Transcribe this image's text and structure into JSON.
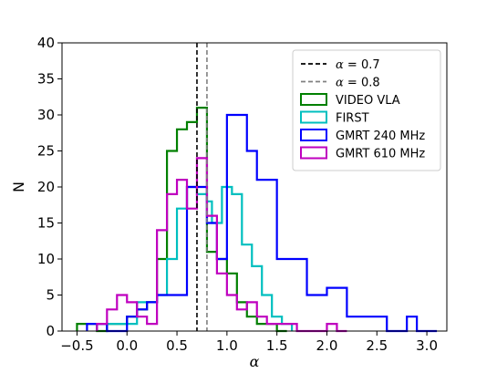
{
  "chart_data": {
    "type": "histogram",
    "xlabel": "α",
    "ylabel": "N",
    "xlim": [
      -0.65,
      3.2
    ],
    "ylim": [
      0,
      40
    ],
    "xticks": [
      -0.5,
      0.0,
      0.5,
      1.0,
      1.5,
      2.0,
      2.5,
      3.0
    ],
    "xtick_labels": [
      "−0.5",
      "0.0",
      "0.5",
      "1.0",
      "1.5",
      "2.0",
      "2.5",
      "3.0"
    ],
    "yticks": [
      0,
      5,
      10,
      15,
      20,
      25,
      30,
      35,
      40
    ],
    "ytick_labels": [
      "0",
      "5",
      "10",
      "15",
      "20",
      "25",
      "30",
      "35",
      "40"
    ],
    "grid": false,
    "legend_position": "top-right",
    "vlines": [
      {
        "x": 0.7,
        "label": "α = 0.7",
        "math_prefix": "α",
        "math_suffix": " = 0.7",
        "color": "#000000",
        "dash": "dashed"
      },
      {
        "x": 0.8,
        "label": "α = 0.8",
        "math_prefix": "α",
        "math_suffix": " = 0.8",
        "color": "#808080",
        "dash": "dashed"
      }
    ],
    "series": [
      {
        "name": "VIDEO VLA",
        "color": "#008000",
        "edges": [
          -0.5,
          -0.4,
          -0.3,
          -0.2,
          -0.1,
          0.0,
          0.1,
          0.2,
          0.3,
          0.4,
          0.5,
          0.6,
          0.7,
          0.8,
          0.9,
          1.0,
          1.1,
          1.2,
          1.3,
          1.4,
          1.5,
          1.6
        ],
        "counts": [
          1,
          1,
          0,
          1,
          1,
          2,
          3,
          4,
          10,
          25,
          28,
          29,
          31,
          11,
          10,
          8,
          4,
          2,
          1,
          1,
          0
        ]
      },
      {
        "name": "FIRST",
        "color": "#00BFBF",
        "edges": [
          -0.3,
          -0.2,
          -0.1,
          0.0,
          0.1,
          0.2,
          0.3,
          0.4,
          0.5,
          0.6,
          0.7,
          0.8,
          0.85,
          0.95,
          1.05,
          1.15,
          1.25,
          1.35,
          1.45,
          1.55,
          1.65
        ],
        "counts": [
          1,
          1,
          1,
          1,
          4,
          4,
          5,
          10,
          17,
          20,
          19,
          18,
          15,
          20,
          19,
          12,
          9,
          5,
          2,
          1
        ]
      },
      {
        "name": "GMRT 240 MHz",
        "color": "#0000FF",
        "edges": [
          -0.4,
          -0.2,
          0.0,
          0.1,
          0.2,
          0.3,
          0.4,
          0.5,
          0.6,
          0.7,
          0.8,
          0.9,
          1.0,
          1.1,
          1.2,
          1.3,
          1.4,
          1.5,
          1.6,
          1.7,
          1.8,
          1.9,
          2.0,
          2.1,
          2.2,
          2.3,
          2.4,
          2.5,
          2.6,
          2.7,
          2.8,
          2.9,
          3.0,
          3.1
        ],
        "counts": [
          1,
          0,
          2,
          3,
          4,
          5,
          5,
          5,
          20,
          20,
          15,
          10,
          30,
          30,
          25,
          21,
          21,
          10,
          10,
          10,
          5,
          5,
          6,
          6,
          2,
          2,
          2,
          2,
          0,
          0,
          2,
          0,
          0
        ]
      },
      {
        "name": "GMRT 610 MHz",
        "color": "#BF00BF",
        "edges": [
          -0.3,
          -0.2,
          -0.1,
          0.0,
          0.1,
          0.2,
          0.3,
          0.4,
          0.5,
          0.6,
          0.7,
          0.8,
          0.9,
          1.0,
          1.1,
          1.2,
          1.3,
          1.4,
          1.5,
          1.6,
          1.7,
          1.8,
          1.9,
          2.0,
          2.1,
          2.2
        ],
        "counts": [
          1,
          3,
          5,
          4,
          2,
          1,
          14,
          19,
          21,
          17,
          24,
          16,
          8,
          5,
          3,
          4,
          2,
          1,
          1,
          1,
          0,
          0,
          0,
          1,
          0
        ]
      }
    ]
  }
}
